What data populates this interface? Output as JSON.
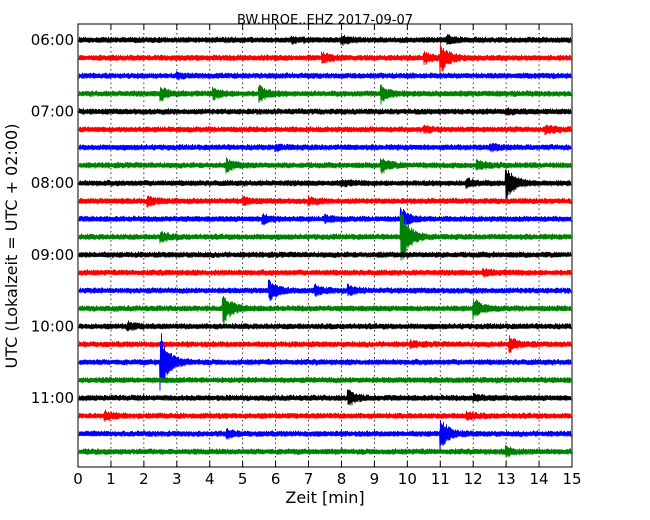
{
  "chart_data": {
    "type": "line",
    "title": "BW.HROE..EHZ 2017-09-07",
    "xlabel": "Zeit  [min]",
    "ylabel": "UTC (Lokalzeit = UTC + 02:00)",
    "xlim": [
      0,
      15
    ],
    "x_ticks": [
      "0",
      "1",
      "2",
      "3",
      "4",
      "5",
      "6",
      "7",
      "8",
      "9",
      "10",
      "11",
      "12",
      "13",
      "14",
      "15"
    ],
    "y_ticks": [
      "06:00",
      "07:00",
      "08:00",
      "09:00",
      "10:00",
      "11:00"
    ],
    "grid": "vertical dotted",
    "row_interval_min": 15,
    "colors": [
      "#000000",
      "#ff0000",
      "#0000ff",
      "#008000"
    ],
    "series": [
      {
        "start": "06:00",
        "events": [
          {
            "t": 8.0,
            "a": 0.25
          },
          {
            "t": 11.2,
            "a": 0.3
          },
          {
            "t": 6.5,
            "a": 0.15
          }
        ]
      },
      {
        "start": "06:15",
        "events": [
          {
            "t": 7.4,
            "a": 0.35
          },
          {
            "t": 11.0,
            "a": 1.0
          },
          {
            "t": 10.5,
            "a": 0.35
          }
        ]
      },
      {
        "start": "06:30",
        "events": [
          {
            "t": 3.0,
            "a": 0.15
          }
        ]
      },
      {
        "start": "06:45",
        "events": [
          {
            "t": 2.5,
            "a": 0.45
          },
          {
            "t": 4.1,
            "a": 0.35
          },
          {
            "t": 5.5,
            "a": 0.55
          },
          {
            "t": 9.2,
            "a": 0.6
          }
        ]
      },
      {
        "start": "07:00",
        "events": [
          {
            "t": 13.0,
            "a": 0.15
          }
        ]
      },
      {
        "start": "07:15",
        "events": [
          {
            "t": 14.2,
            "a": 0.25
          },
          {
            "t": 10.5,
            "a": 0.15
          }
        ]
      },
      {
        "start": "07:30",
        "events": [
          {
            "t": 12.5,
            "a": 0.2
          },
          {
            "t": 6.0,
            "a": 0.15
          }
        ]
      },
      {
        "start": "07:45",
        "events": [
          {
            "t": 4.5,
            "a": 0.4
          },
          {
            "t": 9.2,
            "a": 0.5
          },
          {
            "t": 12.1,
            "a": 0.3
          }
        ]
      },
      {
        "start": "08:00",
        "events": [
          {
            "t": 8.0,
            "a": 0.15
          },
          {
            "t": 11.8,
            "a": 0.25
          },
          {
            "t": 13.0,
            "a": 1.2
          }
        ]
      },
      {
        "start": "08:15",
        "events": [
          {
            "t": 2.1,
            "a": 0.3
          },
          {
            "t": 5.0,
            "a": 0.2
          },
          {
            "t": 7.0,
            "a": 0.2
          }
        ]
      },
      {
        "start": "08:30",
        "events": [
          {
            "t": 5.6,
            "a": 0.3
          },
          {
            "t": 7.5,
            "a": 0.2
          },
          {
            "t": 9.8,
            "a": 0.7
          }
        ]
      },
      {
        "start": "08:45",
        "events": [
          {
            "t": 2.5,
            "a": 0.3
          },
          {
            "t": 9.8,
            "a": 2.0
          }
        ]
      },
      {
        "start": "09:00",
        "events": []
      },
      {
        "start": "09:15",
        "events": [
          {
            "t": 12.3,
            "a": 0.2
          }
        ]
      },
      {
        "start": "09:30",
        "events": [
          {
            "t": 5.8,
            "a": 0.7
          },
          {
            "t": 7.2,
            "a": 0.3
          },
          {
            "t": 8.2,
            "a": 0.3
          }
        ]
      },
      {
        "start": "09:45",
        "events": [
          {
            "t": 4.4,
            "a": 1.1
          },
          {
            "t": 12.0,
            "a": 0.7
          }
        ]
      },
      {
        "start": "10:00",
        "events": [
          {
            "t": 1.5,
            "a": 0.25
          }
        ]
      },
      {
        "start": "10:15",
        "events": [
          {
            "t": 13.1,
            "a": 0.5
          },
          {
            "t": 10.1,
            "a": 0.15
          }
        ]
      },
      {
        "start": "10:30",
        "events": [
          {
            "t": 2.5,
            "a": 2.2
          }
        ]
      },
      {
        "start": "10:45",
        "events": []
      },
      {
        "start": "11:00",
        "events": [
          {
            "t": 8.2,
            "a": 0.5
          },
          {
            "t": 12.0,
            "a": 0.2
          }
        ]
      },
      {
        "start": "11:15",
        "events": [
          {
            "t": 0.8,
            "a": 0.3
          },
          {
            "t": 11.8,
            "a": 0.2
          }
        ]
      },
      {
        "start": "11:30",
        "events": [
          {
            "t": 4.5,
            "a": 0.25
          },
          {
            "t": 11.0,
            "a": 1.1
          }
        ]
      },
      {
        "start": "11:45",
        "events": [
          {
            "t": 13.0,
            "a": 0.3
          }
        ]
      }
    ]
  }
}
